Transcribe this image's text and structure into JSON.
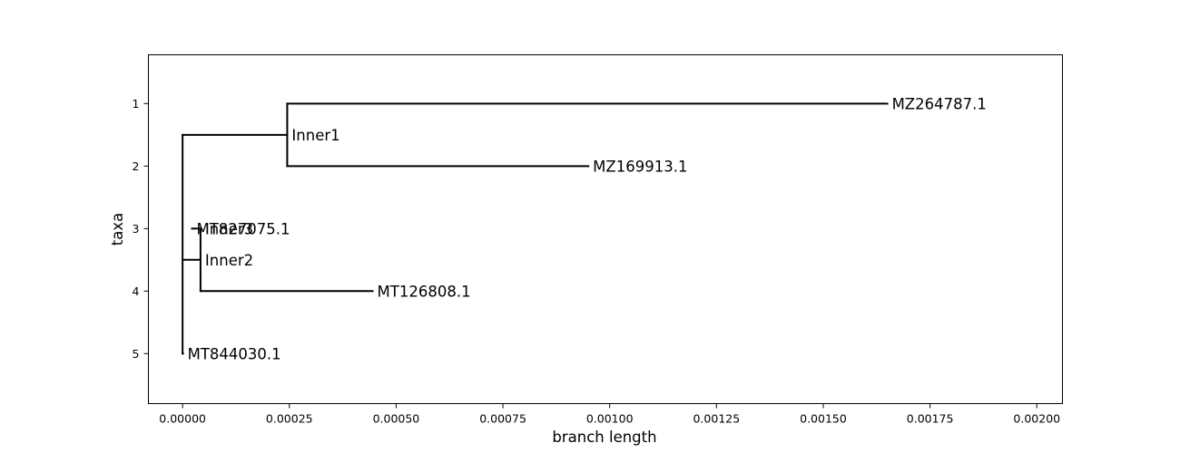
{
  "chart_data": {
    "type": "phylogenetic-tree",
    "xlabel": "branch length",
    "ylabel": "taxa",
    "xlim": [
      -8e-05,
      0.00206
    ],
    "ylim": [
      5.8,
      0.22
    ],
    "x_ticks": [
      0.0,
      0.00025,
      0.0005,
      0.00075,
      0.001,
      0.00125,
      0.0015,
      0.00175,
      0.002
    ],
    "x_tick_labels": [
      "0.00000",
      "0.00025",
      "0.00050",
      "0.00075",
      "0.00100",
      "0.00125",
      "0.00150",
      "0.00175",
      "0.00200"
    ],
    "y_ticks": [
      1,
      2,
      3,
      4,
      5
    ],
    "y_tick_labels": [
      "1",
      "2",
      "3",
      "4",
      "5"
    ],
    "grid": false,
    "legend": false,
    "line_color": "#000000",
    "root": {
      "x": 0.0,
      "y": 3.5
    },
    "nodes": [
      {
        "name": "Inner1",
        "x": 0.000245,
        "y": 1.5,
        "parent": "root",
        "is_leaf": false
      },
      {
        "name": "MZ264787.1",
        "x": 0.00165,
        "y": 1,
        "parent": "Inner1",
        "is_leaf": true
      },
      {
        "name": "MZ169913.1",
        "x": 0.00095,
        "y": 2,
        "parent": "Inner1",
        "is_leaf": true
      },
      {
        "name": "Inner2",
        "x": 4.2e-05,
        "y": 3.5,
        "parent": "root",
        "is_leaf": false
      },
      {
        "name": "Inner3",
        "x": 4.2e-05,
        "y": 3.0,
        "parent": "Inner2",
        "is_leaf": false
      },
      {
        "name": "MT827075.1",
        "x": 2.2e-05,
        "y": 3,
        "parent": "Inner3",
        "is_leaf": true
      },
      {
        "name": "MT126808.1",
        "x": 0.000445,
        "y": 4,
        "parent": "Inner2",
        "is_leaf": true
      },
      {
        "name": "MT844030.1",
        "x": 1e-06,
        "y": 5,
        "parent": "root",
        "is_leaf": true
      }
    ]
  }
}
